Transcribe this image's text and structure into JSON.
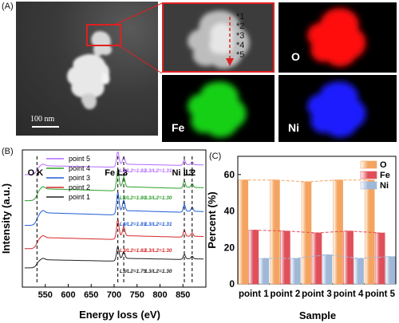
{
  "panel_a": {
    "label": "(A)",
    "scale_bar": "100 nm",
    "points": [
      "*1",
      "*2",
      "*3",
      "*4",
      "*5"
    ],
    "maps": [
      {
        "element": "O",
        "color": "#ff1010"
      },
      {
        "element": "Fe",
        "color": "#14d014"
      },
      {
        "element": "Ni",
        "color": "#1a1aff"
      }
    ]
  },
  "panel_b": {
    "label": "(B)",
    "chart_data": {
      "type": "line",
      "xlabel": "Energy loss (eV)",
      "ylabel": "Intensity (a.u.)",
      "xlim": [
        500,
        900
      ],
      "xticks": [
        550,
        600,
        650,
        700,
        750,
        800,
        850
      ],
      "edges": [
        {
          "label": "O",
          "sub": "K",
          "x": 532
        },
        {
          "label": "Fe L3",
          "x": 708
        },
        {
          "label": "L2",
          "x": 721
        },
        {
          "label": "Ni L3",
          "x": 853
        },
        {
          "label": "L2",
          "x": 870
        }
      ],
      "series": [
        {
          "name": "point 5",
          "color": "#b36bff",
          "ratio_fe": "L3/L2=1.82",
          "ratio_ni": "L3/L2=1.31"
        },
        {
          "name": "point 4",
          "color": "#2ca02c",
          "ratio_fe": "L3/L2=1.80",
          "ratio_ni": "L3/L2=1.30"
        },
        {
          "name": "point 3",
          "color": "#1f5bd6",
          "ratio_fe": "L3/L2=1.81",
          "ratio_ni": "L3/L2=1.31"
        },
        {
          "name": "point 2",
          "color": "#d62728",
          "ratio_fe": "L3/L2=1.82",
          "ratio_ni": "L3/L2=1.30"
        },
        {
          "name": "point 1",
          "color": "#222222",
          "ratio_fe": "L3/L2=1.79",
          "ratio_ni": "L3/L2=1.30"
        }
      ]
    }
  },
  "panel_c": {
    "label": "(C)",
    "chart_data": {
      "type": "bar",
      "xlabel": "Sample",
      "ylabel": "Percent (%)",
      "ylim": [
        0,
        70
      ],
      "yticks": [
        0,
        20,
        40,
        60
      ],
      "categories": [
        "point 1",
        "point 2",
        "point 3",
        "point 4",
        "point 5"
      ],
      "series": [
        {
          "name": "O",
          "color": "#f4a460",
          "values": [
            57,
            57,
            56,
            57,
            57
          ]
        },
        {
          "name": "Fe",
          "color": "#e0505a",
          "values": [
            29.5,
            29,
            28,
            29,
            28
          ]
        },
        {
          "name": "Ni",
          "color": "#9fb8d8",
          "values": [
            14,
            14,
            16,
            14,
            15
          ]
        }
      ]
    }
  }
}
